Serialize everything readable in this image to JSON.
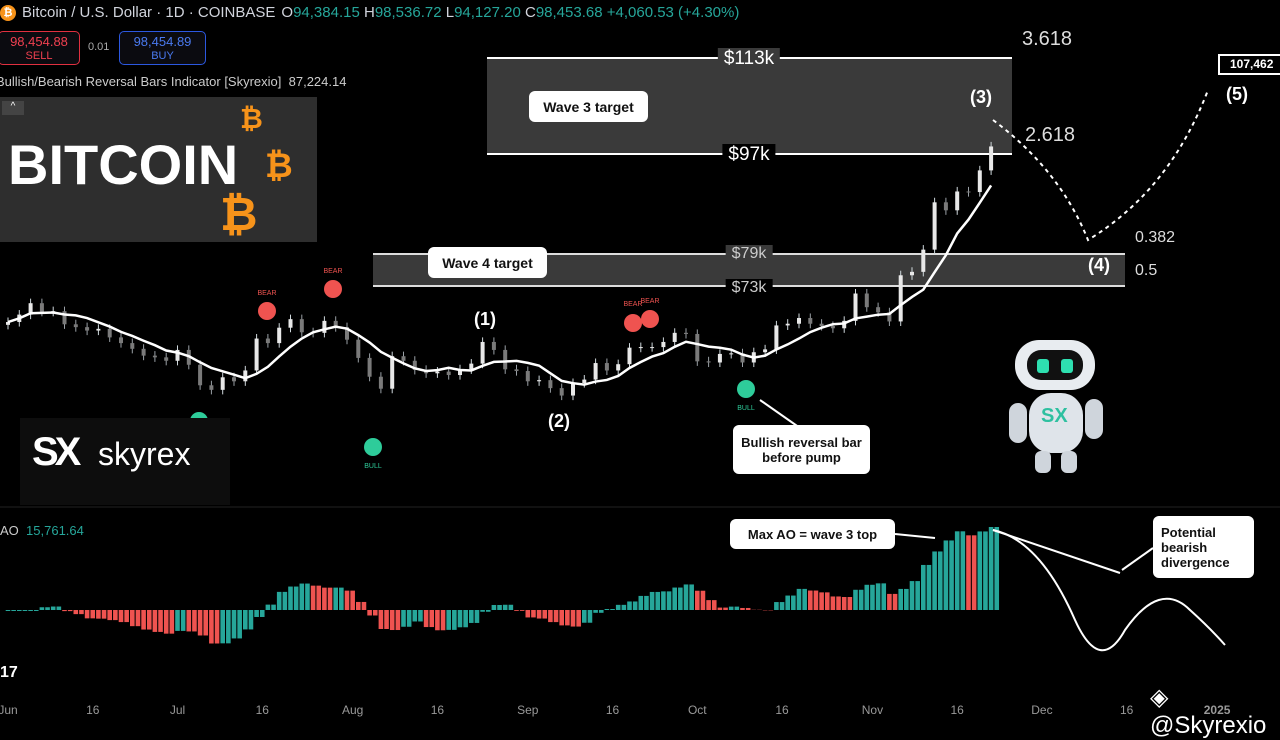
{
  "header": {
    "symbol": "Bitcoin / U.S. Dollar · 1D · COINBASE",
    "o_label": "O",
    "o": "94,384.15",
    "h_label": "H",
    "h": "98,536.72",
    "l_label": "L",
    "l": "94,127.20",
    "c_label": "C",
    "c": "98,453.68",
    "change": "+4,060.53 (+4.30%)",
    "coin_glyph": "₿"
  },
  "trade": {
    "sell_price": "98,454.88",
    "sell_label": "SELL",
    "spread": "0.01",
    "buy_price": "98,454.89",
    "buy_label": "BUY"
  },
  "indicator": {
    "name": "Bullish/Bearish Reversal Bars Indicator [Skyrexio]",
    "value": "87,224.14",
    "collapse_glyph": "^"
  },
  "ao": {
    "label": "AO",
    "value": "15,761.64"
  },
  "logo": {
    "text": "BITCOIN",
    "glyph": "₿",
    "skyrex": "skyrex",
    "watermark": "@Skyrexio"
  },
  "colors": {
    "up": "#26a69a",
    "down": "#ef5350",
    "ma": "#ffffff",
    "box": "#3a3a3a",
    "bull": "#2ecc9a",
    "bear": "#ef5350"
  },
  "annotations": {
    "wave3_target": "Wave 3 target",
    "wave4_target": "Wave 4 target",
    "l113": "$113k",
    "l97": "$97k",
    "l79": "$79k",
    "l73": "$73k",
    "fib3618": "3.618",
    "fib2618": "2.618",
    "fib0382": "0.382",
    "fib05": "0.5",
    "w1": "(1)",
    "w2": "(2)",
    "w3": "(3)",
    "w4": "(4)",
    "w5": "(5)",
    "target_price": "107,462",
    "bullish_callout": "Bullish reversal bar before pump",
    "max_ao": "Max AO = wave 3 top",
    "divergence": "Potential bearish divergence",
    "bull": "BULL",
    "bear": "BEAR"
  },
  "chart_data": {
    "type": "candlestick",
    "interval": "2-day sampled closes (approx.)",
    "start": "2024-06-01",
    "x_ticks": [
      "Jun",
      "16",
      "Jul",
      "16",
      "Aug",
      "16",
      "Sep",
      "16",
      "Oct",
      "16",
      "Nov",
      "16",
      "Dec",
      "16",
      "2025"
    ],
    "close_k": [
      67.7,
      69,
      71,
      69.5,
      69.6,
      67.3,
      66.8,
      66.2,
      66.5,
      65,
      64,
      63,
      61.8,
      61.5,
      60.9,
      62.8,
      60.2,
      56.6,
      55.8,
      58,
      57.3,
      59.2,
      64.8,
      64,
      66.7,
      68.2,
      65.9,
      65.8,
      67.9,
      66.8,
      64.6,
      61.4,
      58.1,
      56,
      61.7,
      60.9,
      59.3,
      58.7,
      59,
      58.4,
      59.4,
      60.4,
      64.2,
      62.8,
      59.4,
      59.1,
      57.3,
      57.5,
      56.1,
      54.8,
      57,
      57.6,
      60.5,
      59.2,
      60.3,
      63.2,
      63.3,
      63.3,
      64.2,
      65.8,
      65.6,
      60.8,
      60.6,
      62.1,
      62.2,
      60.6,
      62.4,
      62.9,
      67.1,
      67.4,
      68.4,
      67.4,
      67,
      66.6,
      67.9,
      72.7,
      70.3,
      69.4,
      67.8,
      75.9,
      76.5,
      80.4,
      88.7,
      87.3,
      90.6,
      90.5,
      94.3,
      98.5
    ]
  }
}
